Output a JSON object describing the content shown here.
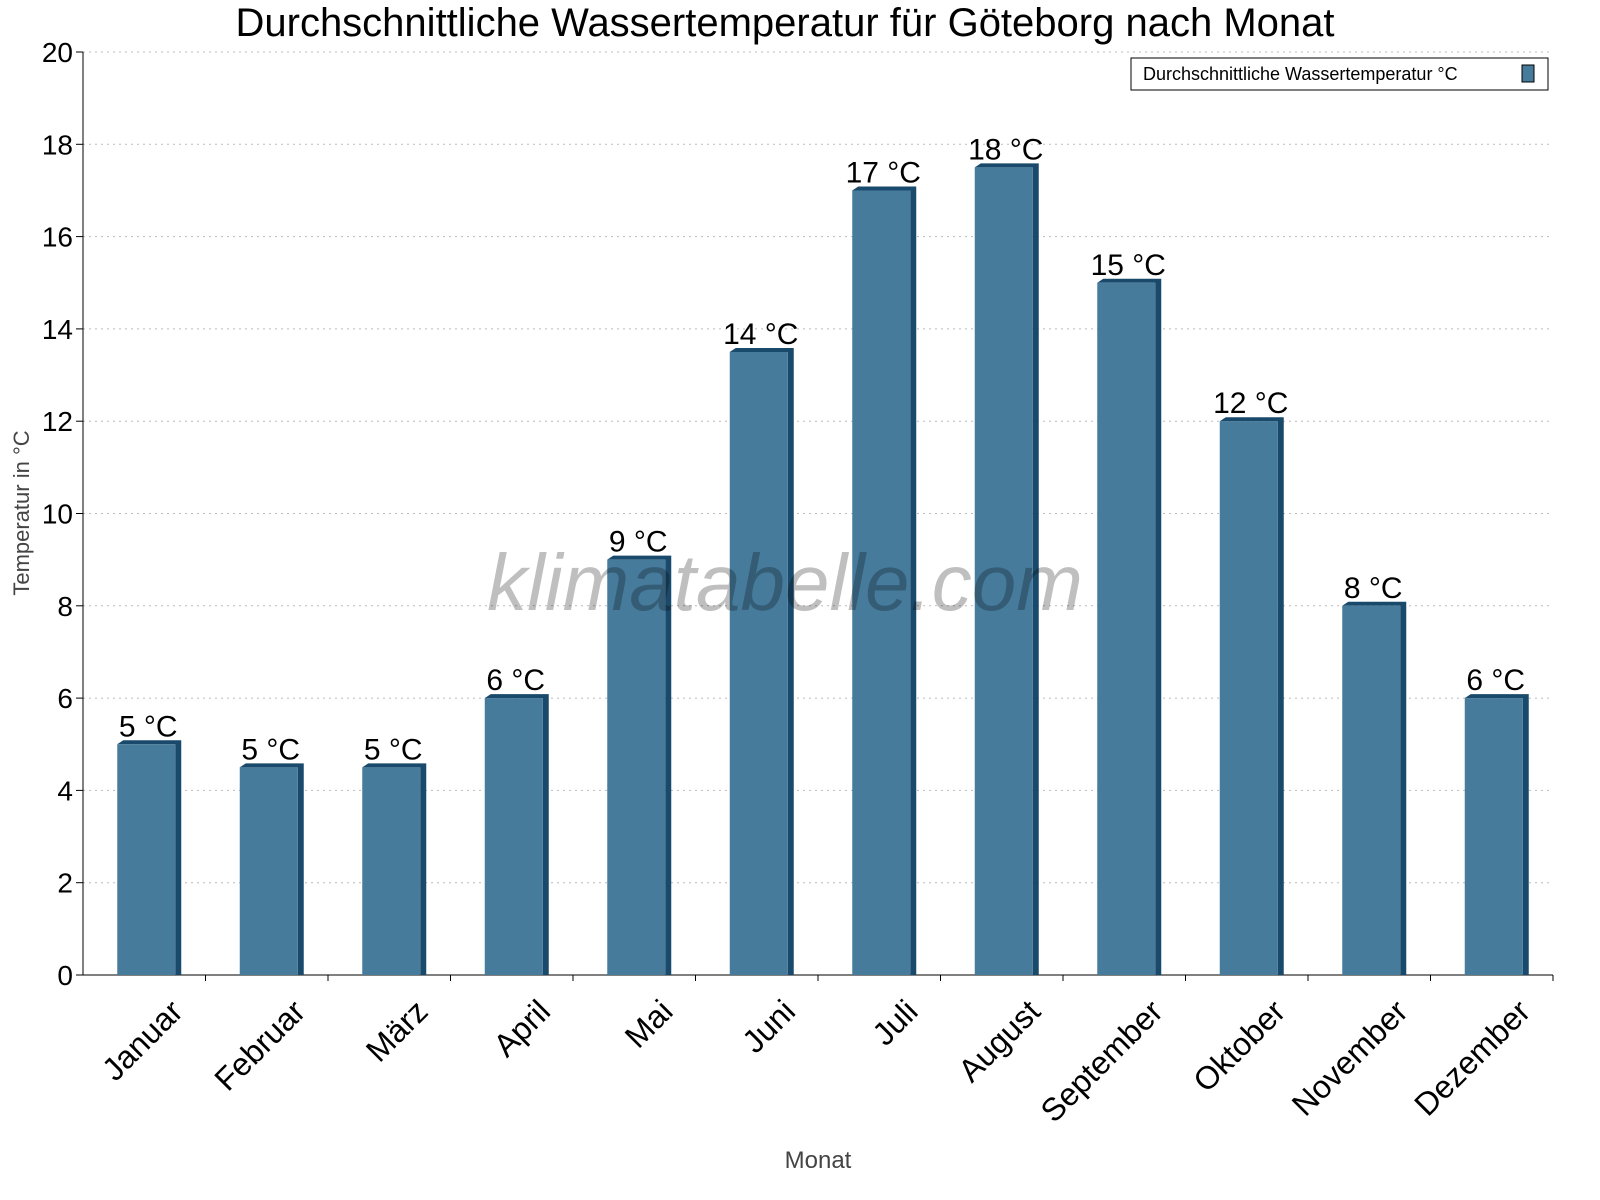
{
  "chart_data": {
    "type": "bar",
    "title": "Durchschnittliche Wassertemperatur für Göteborg nach Monat",
    "xlabel": "Monat",
    "ylabel": "Temperatur in °C",
    "ylim": [
      0,
      20
    ],
    "yticks": [
      0,
      2,
      4,
      6,
      8,
      10,
      12,
      14,
      16,
      18,
      20
    ],
    "grid": true,
    "legend_position": "top-right",
    "categories": [
      "Januar",
      "Februar",
      "März",
      "April",
      "Mai",
      "Juni",
      "Juli",
      "August",
      "September",
      "Oktober",
      "November",
      "Dezember"
    ],
    "series": [
      {
        "name": "Durchschnittliche Wassertemperatur °C",
        "values": [
          5.0,
          4.5,
          4.5,
          6.0,
          9.0,
          13.5,
          17.0,
          17.5,
          15.0,
          12.0,
          8.0,
          6.0
        ],
        "data_labels": [
          "5 °C",
          "5 °C",
          "5 °C",
          "6 °C",
          "9 °C",
          "14 °C",
          "17 °C",
          "18 °C",
          "15 °C",
          "12 °C",
          "8 °C",
          "6 °C"
        ],
        "color": "#467b9c",
        "shade_color": "#1a4a6b"
      }
    ],
    "watermark": "klimatabelle.com"
  }
}
